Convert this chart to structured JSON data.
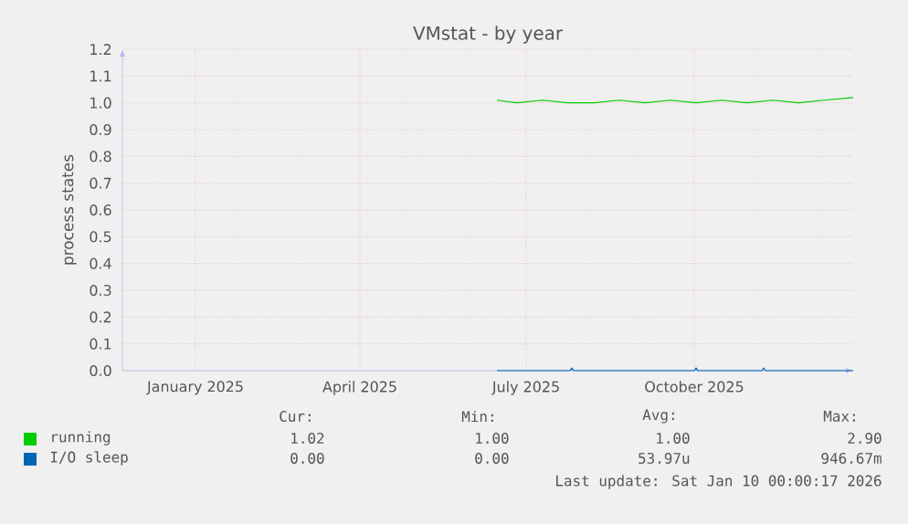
{
  "chart_data": {
    "type": "line",
    "title": "VMstat - by year",
    "ylabel": "process states",
    "xlim": [
      "2024-12-06",
      "2026-01-10"
    ],
    "xticks": [
      {
        "value": "2025-01-15",
        "label": "January 2025"
      },
      {
        "value": "2025-04-15",
        "label": "April 2025"
      },
      {
        "value": "2025-07-15",
        "label": "July 2025"
      },
      {
        "value": "2025-10-15",
        "label": "October 2025"
      }
    ],
    "ylim": [
      0,
      1.2
    ],
    "yticks": [
      {
        "value": 0,
        "label": "0.0"
      },
      {
        "value": 0.1,
        "label": "0.1"
      },
      {
        "value": 0.2,
        "label": "0.2"
      },
      {
        "value": 0.3,
        "label": "0.3"
      },
      {
        "value": 0.4,
        "label": "0.4"
      },
      {
        "value": 0.5,
        "label": "0.5"
      },
      {
        "value": 0.6,
        "label": "0.6"
      },
      {
        "value": 0.7,
        "label": "0.7"
      },
      {
        "value": 0.8,
        "label": "0.8"
      },
      {
        "value": 0.9,
        "label": "0.9"
      },
      {
        "value": 1.0,
        "label": "1.0"
      },
      {
        "value": 1.1,
        "label": "1.1"
      },
      {
        "value": 1.2,
        "label": "1.2"
      }
    ],
    "grid": true,
    "legend": "bottom",
    "marker": "none",
    "line_style": "solid",
    "series": [
      {
        "name": "running",
        "color": "#00cc00",
        "x": [
          "2025-06-29",
          "2025-07-10",
          "2025-07-24",
          "2025-08-07",
          "2025-08-21",
          "2025-09-04",
          "2025-09-18",
          "2025-10-02",
          "2025-10-16",
          "2025-10-30",
          "2025-11-13",
          "2025-11-27",
          "2025-12-11",
          "2025-12-25",
          "2026-01-10"
        ],
        "values": [
          1.01,
          1.0,
          1.01,
          1.0,
          1.0,
          1.01,
          1.0,
          1.01,
          1.0,
          1.01,
          1.0,
          1.01,
          1.0,
          1.01,
          1.02
        ]
      },
      {
        "name": "I/O sleep",
        "color": "#0066b3",
        "x": [
          "2025-06-29",
          "2025-08-08",
          "2025-08-09",
          "2025-08-10",
          "2025-10-15",
          "2025-10-16",
          "2025-10-17",
          "2025-11-21",
          "2025-11-22",
          "2025-11-23",
          "2026-01-10"
        ],
        "values": [
          0,
          0,
          0.01,
          0,
          0,
          0.01,
          0,
          0,
          0.01,
          0,
          0
        ]
      }
    ],
    "annotations": [
      "Cur:",
      "Min:",
      "Avg:",
      "Max:",
      "1.02",
      "1.00",
      "1.00",
      "2.90",
      "0.00",
      "0.00",
      "53.97u",
      "946.67m",
      "Last update: Sat Jan 10 00:00:17 2026"
    ]
  }
}
